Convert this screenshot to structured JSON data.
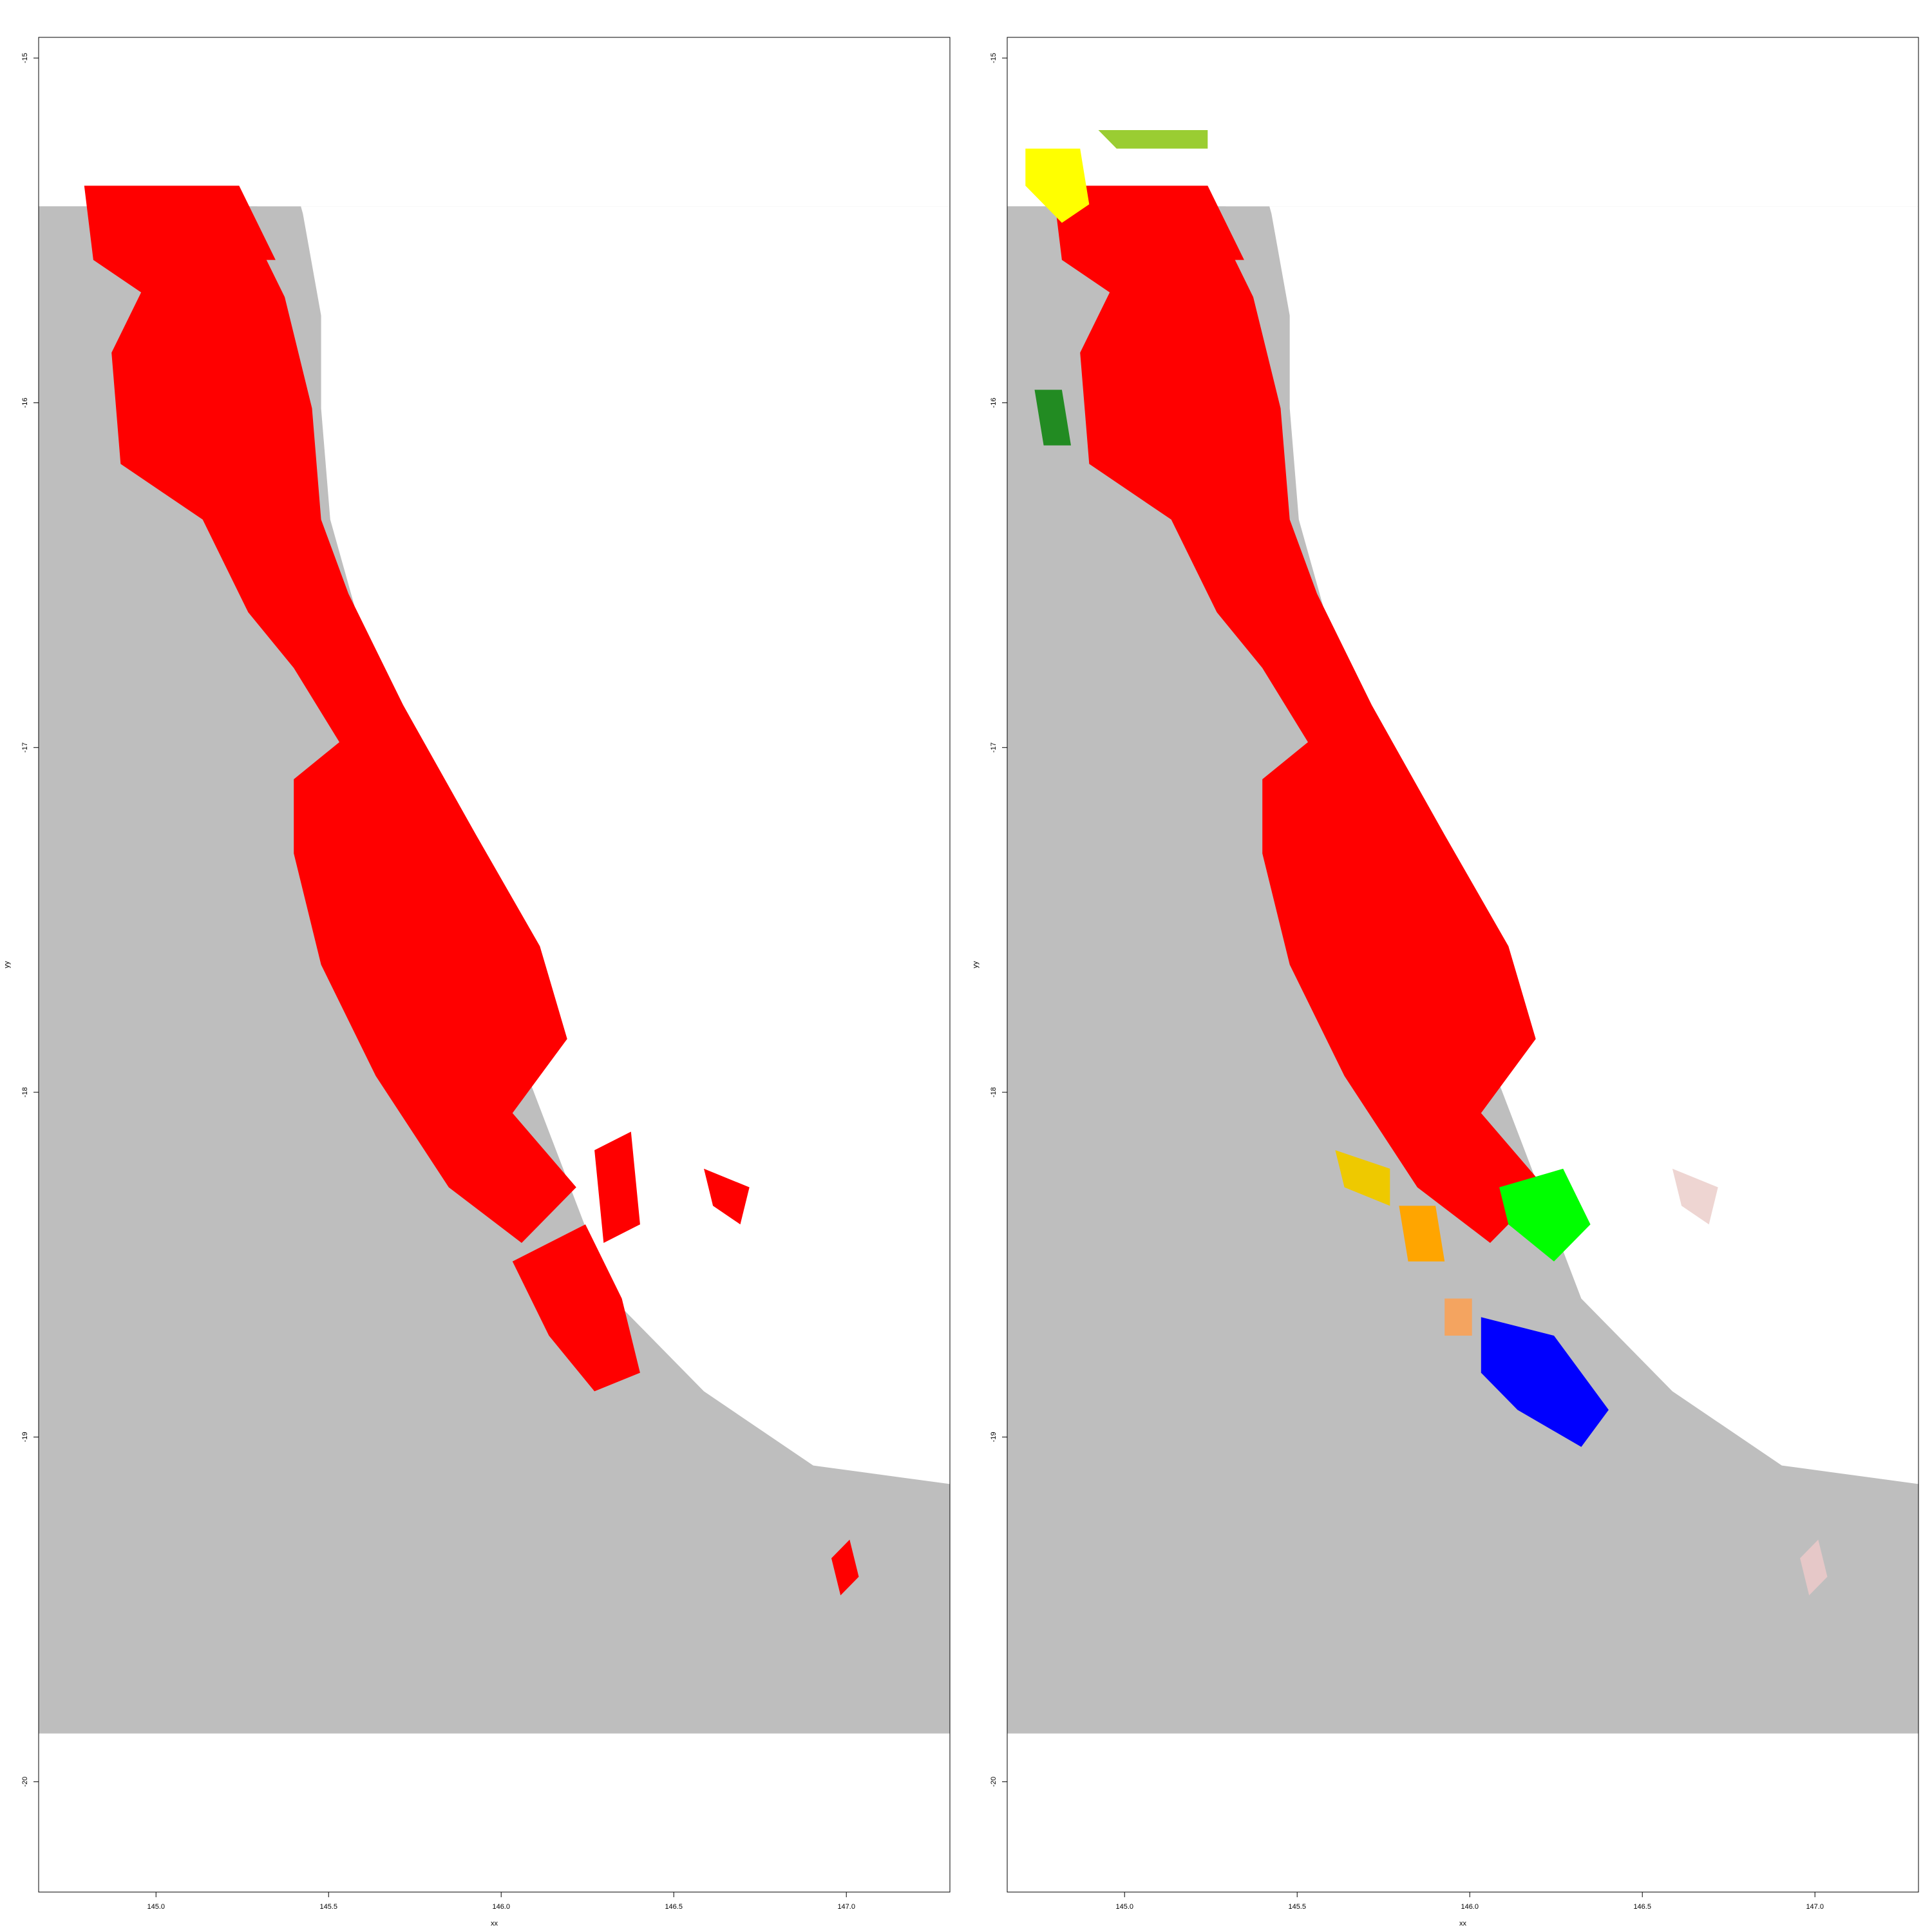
{
  "figure": {
    "xlabel": "xx",
    "ylabel": "yy",
    "x_ticks": [
      "145.0",
      "145.5",
      "146.0",
      "146.5",
      "147.0"
    ],
    "y_ticks": [
      "-15",
      "-16",
      "-17",
      "-18",
      "-19",
      "-20"
    ]
  },
  "chart_data": [
    {
      "type": "heatmap",
      "panel": "left",
      "xlim": [
        144.66,
        147.3
      ],
      "ylim": [
        -20.32,
        -14.94
      ],
      "raster_extent": {
        "x": [
          144.66,
          147.3
        ],
        "y": [
          -19.86,
          -15.43
        ]
      },
      "background_color": "#BEBEBE",
      "classes": [
        {
          "color": "#FF0000"
        }
      ]
    },
    {
      "type": "heatmap",
      "panel": "right",
      "xlim": [
        144.66,
        147.3
      ],
      "ylim": [
        -20.32,
        -14.94
      ],
      "raster_extent": {
        "x": [
          144.66,
          147.3
        ],
        "y": [
          -19.86,
          -15.43
        ]
      },
      "background_color": "#BEBEBE",
      "classes": [
        {
          "color": "#FF0000"
        },
        {
          "color": "#FFFF00"
        },
        {
          "color": "#00FF00"
        },
        {
          "color": "#0000FF"
        },
        {
          "color": "#FFA500"
        },
        {
          "color": "#EEC900"
        },
        {
          "color": "#F4A460"
        },
        {
          "color": "#228B22"
        },
        {
          "color": "#9ACD32"
        },
        {
          "color": "#EED5D2"
        },
        {
          "color": "#E6C8C8"
        }
      ]
    }
  ]
}
